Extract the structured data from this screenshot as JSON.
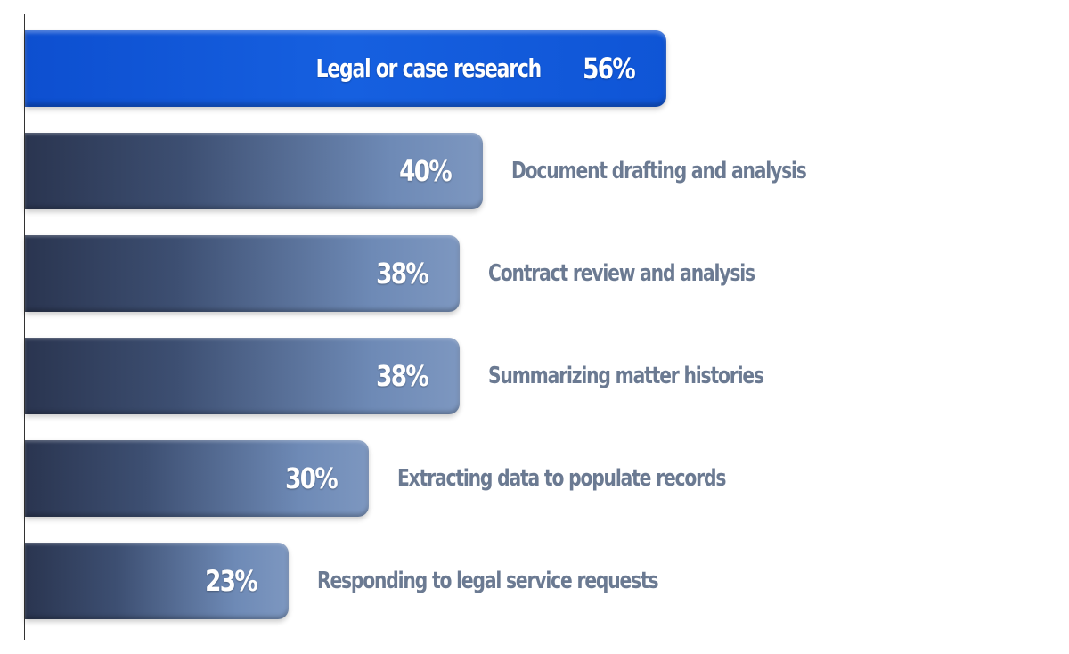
{
  "chart_data": {
    "type": "bar",
    "orientation": "horizontal",
    "unit": "%",
    "xlim": [
      0,
      100
    ],
    "grid": false,
    "highlight_color": "#1660e0",
    "bar_color_start": "#2a3550",
    "bar_color_end": "#7d97c0",
    "label_color": "#6b7a92",
    "categories": [
      "Legal or case research",
      "Document drafting and analysis",
      "Contract review and analysis",
      "Summarizing matter histories",
      "Extracting data to populate records",
      "Responding to legal service requests"
    ],
    "values": [
      56,
      40,
      38,
      38,
      30,
      23
    ],
    "value_labels": [
      "56%",
      "40%",
      "38%",
      "38%",
      "30%",
      "23%"
    ],
    "highlighted_index": 0
  }
}
